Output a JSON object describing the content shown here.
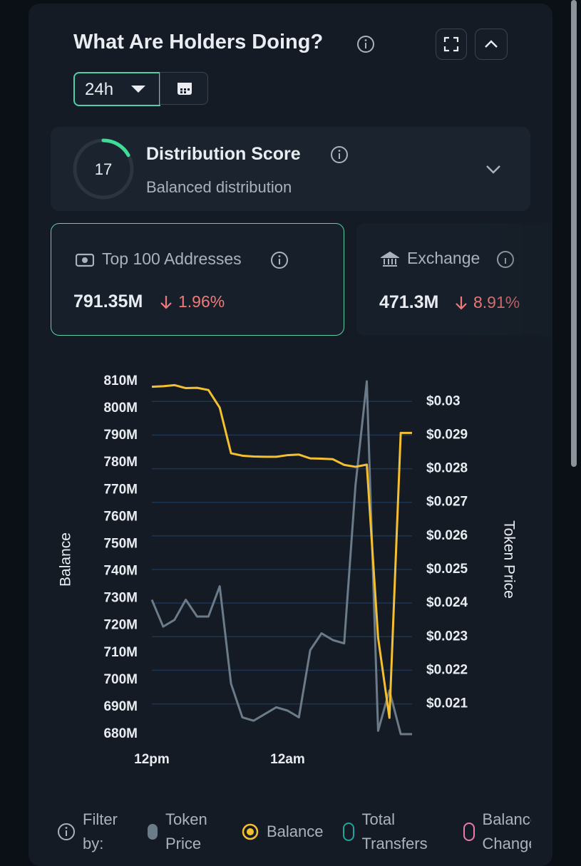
{
  "header": {
    "title": "What Are Holders Doing?"
  },
  "timeframe": "24h",
  "score": {
    "value": 17,
    "title": "Distribution Score",
    "subtitle": "Balanced distribution"
  },
  "cards": [
    {
      "title": "Top 100 Addresses",
      "value": "791.35M",
      "change": "1.96%"
    },
    {
      "title": "Exchange",
      "value": "471.3M",
      "change": "8.91%"
    }
  ],
  "chart_data": {
    "type": "line",
    "ylabel": "Balance",
    "y2label": "Token Price",
    "x": [
      0,
      1,
      2,
      3,
      4,
      5,
      6,
      7,
      8,
      9,
      10,
      11,
      12,
      13,
      14,
      15,
      16,
      17,
      18,
      19,
      20,
      21,
      22,
      23
    ],
    "xlim": [
      0,
      23
    ],
    "xticks": [
      {
        "value": 0,
        "label": "12pm"
      },
      {
        "value": 12,
        "label": "12am"
      }
    ],
    "ylim": [
      680000000,
      810000000
    ],
    "yticks": [
      {
        "value": 680000000,
        "label": "680M"
      },
      {
        "value": 690000000,
        "label": "690M"
      },
      {
        "value": 700000000,
        "label": "700M"
      },
      {
        "value": 710000000,
        "label": "710M"
      },
      {
        "value": 720000000,
        "label": "720M"
      },
      {
        "value": 730000000,
        "label": "730M"
      },
      {
        "value": 740000000,
        "label": "740M"
      },
      {
        "value": 750000000,
        "label": "750M"
      },
      {
        "value": 760000000,
        "label": "760M"
      },
      {
        "value": 770000000,
        "label": "770M"
      },
      {
        "value": 780000000,
        "label": "780M"
      },
      {
        "value": 790000000,
        "label": "790M"
      },
      {
        "value": 800000000,
        "label": "800M"
      },
      {
        "value": 810000000,
        "label": "810M"
      }
    ],
    "y2lim": [
      0.0201,
      0.0306
    ],
    "y2ticks": [
      {
        "value": 0.021,
        "label": "$0.021"
      },
      {
        "value": 0.022,
        "label": "$0.022"
      },
      {
        "value": 0.023,
        "label": "$0.023"
      },
      {
        "value": 0.024,
        "label": "$0.024"
      },
      {
        "value": 0.025,
        "label": "$0.025"
      },
      {
        "value": 0.026,
        "label": "$0.026"
      },
      {
        "value": 0.027,
        "label": "$0.027"
      },
      {
        "value": 0.028,
        "label": "$0.028"
      },
      {
        "value": 0.029,
        "label": "$0.029"
      },
      {
        "value": 0.03,
        "label": "$0.03"
      }
    ],
    "grid": true,
    "series": [
      {
        "name": "Token Price",
        "color": "#6b7b89",
        "axis": "y2",
        "values": [
          0.0241,
          0.0233,
          0.0235,
          0.0241,
          0.0236,
          0.0236,
          0.0245,
          0.0216,
          0.0206,
          0.0205,
          0.0207,
          0.0209,
          0.0208,
          0.0206,
          0.0226,
          0.0231,
          0.0229,
          0.0228,
          0.0275,
          0.0306,
          0.0202,
          0.0214,
          0.0201,
          0.0201
        ]
      },
      {
        "name": "Balance",
        "color": "#f5c02f",
        "values": [
          808000000,
          808200000,
          808600000,
          807500000,
          807600000,
          806800000,
          800300000,
          783500000,
          782600000,
          782300000,
          782200000,
          782200000,
          782800000,
          783000000,
          781600000,
          781500000,
          781300000,
          779200000,
          778500000,
          779300000,
          715500000,
          686000000,
          791000000,
          791000000
        ]
      }
    ]
  },
  "filter": {
    "label": "Filter by:",
    "options": [
      {
        "name": "Total Transfers",
        "color": "#1fa59a"
      },
      {
        "name": "Balance Change",
        "color": "#e87bb0"
      }
    ]
  }
}
